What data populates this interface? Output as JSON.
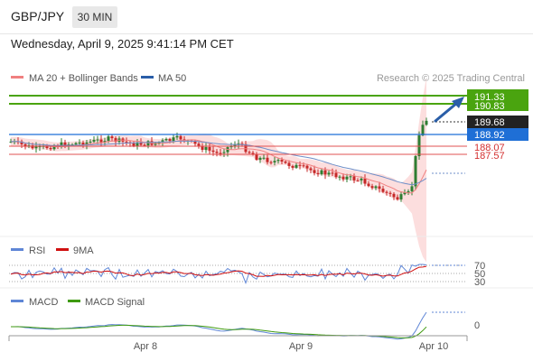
{
  "header": {
    "symbol": "GBP/JPY",
    "timeframe": "30 MIN",
    "datetime": "Wednesday, April 9, 2025 9:41:14 PM CET"
  },
  "colors": {
    "up": "#2e7d32",
    "down": "#c62828",
    "ma50": "#2a5ea8",
    "bollinger": "#f08080",
    "resistance": "#4aa40f",
    "support": "#e05050",
    "last": "#1f6fd6",
    "rsi": "#5f86d6",
    "rsi_ma": "#d01010",
    "macd": "#5f86d6",
    "macd_signal": "#3f9a10"
  },
  "legend": {
    "ma20": "MA 20 + Bollinger Bands",
    "ma50": "MA 50",
    "credit": "Research © 2025 Trading Central",
    "rsi": "RSI",
    "rsi_ma": "9MA",
    "macd": "MACD",
    "macd_signal": "MACD Signal"
  },
  "chart_data": {
    "type": "candlestick",
    "x_ticks": [
      "Apr 8",
      "Apr 9",
      "Apr 10"
    ],
    "price_axis": {
      "min": 181.0,
      "max": 193.0
    },
    "levels": {
      "resistance": [
        191.33,
        190.83
      ],
      "last": 188.92,
      "pivot": 189.68,
      "support": [
        188.07,
        187.57
      ]
    },
    "rsi": {
      "levels": [
        70,
        50,
        30
      ]
    },
    "macd": {
      "levels": [
        0
      ]
    }
  }
}
